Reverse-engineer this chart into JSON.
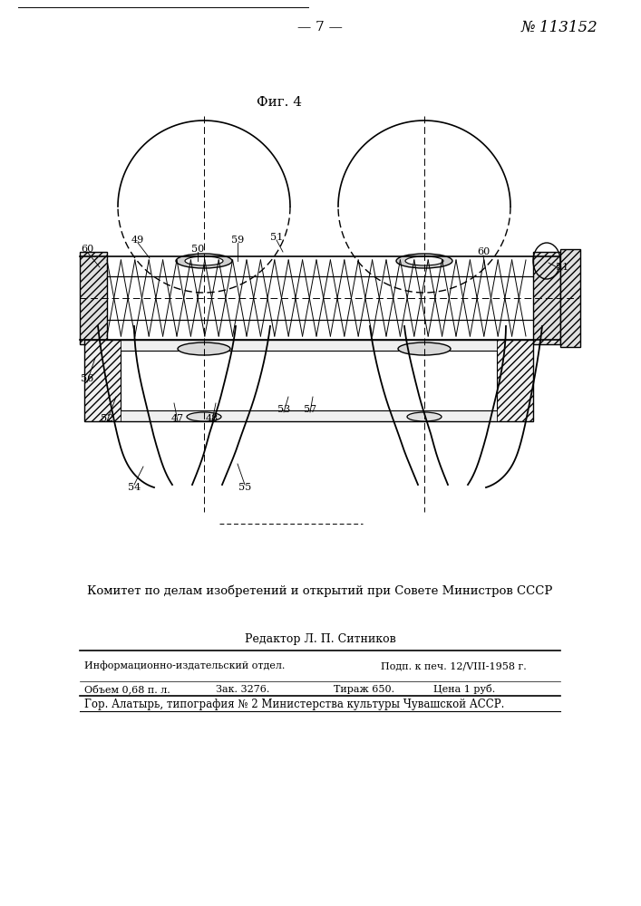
{
  "page_number": "— 7 —",
  "patent_number": "№ 113152",
  "fig_label": "Фиг. 4",
  "committee_text": "Комитет по делам изобретений и открытий при Совете Министров СССР",
  "editor_label": "Редактор Л. П. Ситников",
  "row1_col1": "Информационно-издательский отдел.",
  "row1_col2": "Подп. к печ. 12/VIII-1958 г.",
  "row2_col1": "Объем 0,68 п. л.",
  "row2_col2": "Зак. 3276.",
  "row2_col3": "Тираж 650.",
  "row2_col4": "Цена 1 руб.",
  "footer_text": "Гор. Алатырь, типография № 2 Министерства культуры Чувашской АССР.",
  "bg_color": "#ffffff",
  "line_color": "#000000",
  "text_color": "#000000"
}
